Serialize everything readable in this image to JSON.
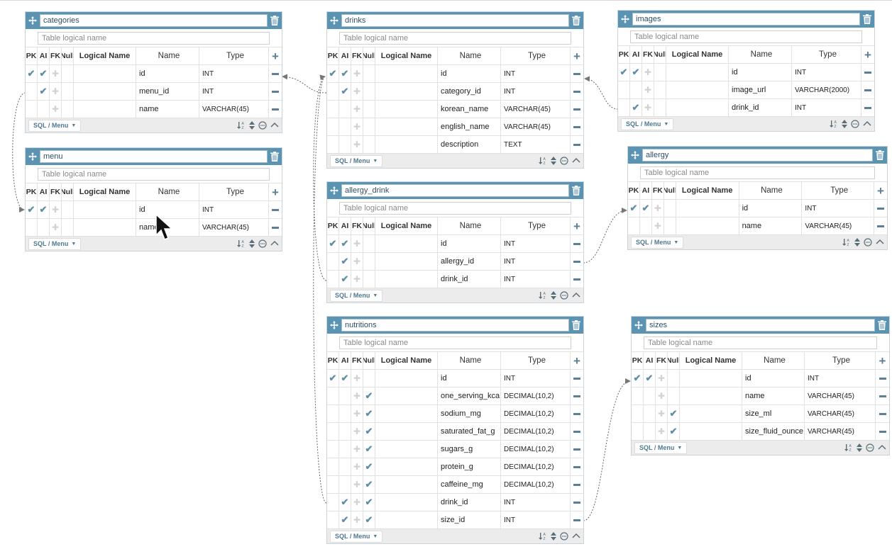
{
  "column_headers": {
    "pk": "PK",
    "ai": "AI",
    "fk": "FK",
    "nl": "Null",
    "logical": "Logical Name",
    "name": "Name",
    "type": "Type"
  },
  "logical_placeholder": "Table logical name",
  "footer": {
    "sql_menu": "SQL / Menu"
  },
  "icons": {
    "move": "move-icon",
    "trash": "trash-icon",
    "add": "add-column-icon",
    "remove": "remove-column-icon",
    "sort": "sort-icon",
    "collapse": "collapse-icon",
    "comment": "comment-icon"
  },
  "colors": {
    "header": "#5b93b3",
    "check": "#5e8ea8",
    "link": "#777777"
  },
  "tables": [
    {
      "name": "categories",
      "columns": [
        {
          "name": "id",
          "type": "INT",
          "pk": true,
          "ai": true,
          "fk": false,
          "nl": false
        },
        {
          "name": "menu_id",
          "type": "INT",
          "pk": false,
          "ai": true,
          "fk": false,
          "nl": false
        },
        {
          "name": "name",
          "type": "VARCHAR(45)",
          "pk": false,
          "ai": false,
          "fk": false,
          "nl": false
        }
      ]
    },
    {
      "name": "menu",
      "columns": [
        {
          "name": "id",
          "type": "INT",
          "pk": true,
          "ai": true,
          "fk": false,
          "nl": false
        },
        {
          "name": "name",
          "type": "VARCHAR(45)",
          "pk": false,
          "ai": false,
          "fk": false,
          "nl": false
        }
      ]
    },
    {
      "name": "drinks",
      "columns": [
        {
          "name": "id",
          "type": "INT",
          "pk": true,
          "ai": true,
          "fk": false,
          "nl": false
        },
        {
          "name": "category_id",
          "type": "INT",
          "pk": false,
          "ai": true,
          "fk": false,
          "nl": false
        },
        {
          "name": "korean_name",
          "type": "VARCHAR(45)",
          "pk": false,
          "ai": false,
          "fk": false,
          "nl": false
        },
        {
          "name": "english_name",
          "type": "VARCHAR(45)",
          "pk": false,
          "ai": false,
          "fk": false,
          "nl": false
        },
        {
          "name": "description",
          "type": "TEXT",
          "pk": false,
          "ai": false,
          "fk": false,
          "nl": false
        }
      ]
    },
    {
      "name": "allergy_drink",
      "columns": [
        {
          "name": "id",
          "type": "INT",
          "pk": true,
          "ai": true,
          "fk": false,
          "nl": false
        },
        {
          "name": "allergy_id",
          "type": "INT",
          "pk": false,
          "ai": true,
          "fk": false,
          "nl": false
        },
        {
          "name": "drink_id",
          "type": "INT",
          "pk": false,
          "ai": true,
          "fk": false,
          "nl": false
        }
      ]
    },
    {
      "name": "nutritions",
      "columns": [
        {
          "name": "id",
          "type": "INT",
          "pk": true,
          "ai": true,
          "fk": false,
          "nl": false
        },
        {
          "name": "one_serving_kca",
          "type": "DECIMAL(10,2)",
          "pk": false,
          "ai": false,
          "fk": false,
          "nl": true
        },
        {
          "name": "sodium_mg",
          "type": "DECIMAL(10,2)",
          "pk": false,
          "ai": false,
          "fk": false,
          "nl": true
        },
        {
          "name": "saturated_fat_g",
          "type": "DECIMAL(10,2)",
          "pk": false,
          "ai": false,
          "fk": false,
          "nl": true
        },
        {
          "name": "sugars_g",
          "type": "DECIMAL(10,2)",
          "pk": false,
          "ai": false,
          "fk": false,
          "nl": true
        },
        {
          "name": "protein_g",
          "type": "DECIMAL(10,2)",
          "pk": false,
          "ai": false,
          "fk": false,
          "nl": true
        },
        {
          "name": "caffeine_mg",
          "type": "DECIMAL(10,2)",
          "pk": false,
          "ai": false,
          "fk": false,
          "nl": true
        },
        {
          "name": "drink_id",
          "type": "INT",
          "pk": false,
          "ai": true,
          "fk": false,
          "nl": true
        },
        {
          "name": "size_id",
          "type": "INT",
          "pk": false,
          "ai": true,
          "fk": false,
          "nl": true
        }
      ]
    },
    {
      "name": "images",
      "columns": [
        {
          "name": "id",
          "type": "INT",
          "pk": true,
          "ai": true,
          "fk": false,
          "nl": false
        },
        {
          "name": "image_url",
          "type": "VARCHAR(2000)",
          "pk": false,
          "ai": false,
          "fk": false,
          "nl": false
        },
        {
          "name": "drink_id",
          "type": "INT",
          "pk": false,
          "ai": true,
          "fk": false,
          "nl": false
        }
      ]
    },
    {
      "name": "allergy",
      "columns": [
        {
          "name": "id",
          "type": "INT",
          "pk": true,
          "ai": true,
          "fk": false,
          "nl": false
        },
        {
          "name": "name",
          "type": "VARCHAR(45)",
          "pk": false,
          "ai": false,
          "fk": false,
          "nl": false
        }
      ]
    },
    {
      "name": "sizes",
      "columns": [
        {
          "name": "id",
          "type": "INT",
          "pk": true,
          "ai": true,
          "fk": false,
          "nl": false
        },
        {
          "name": "name",
          "type": "VARCHAR(45)",
          "pk": false,
          "ai": false,
          "fk": false,
          "nl": false
        },
        {
          "name": "size_ml",
          "type": "VARCHAR(45)",
          "pk": false,
          "ai": false,
          "fk": false,
          "nl": true
        },
        {
          "name": "size_fluid_ounce",
          "type": "VARCHAR(45)",
          "pk": false,
          "ai": false,
          "fk": false,
          "nl": true
        }
      ]
    }
  ]
}
